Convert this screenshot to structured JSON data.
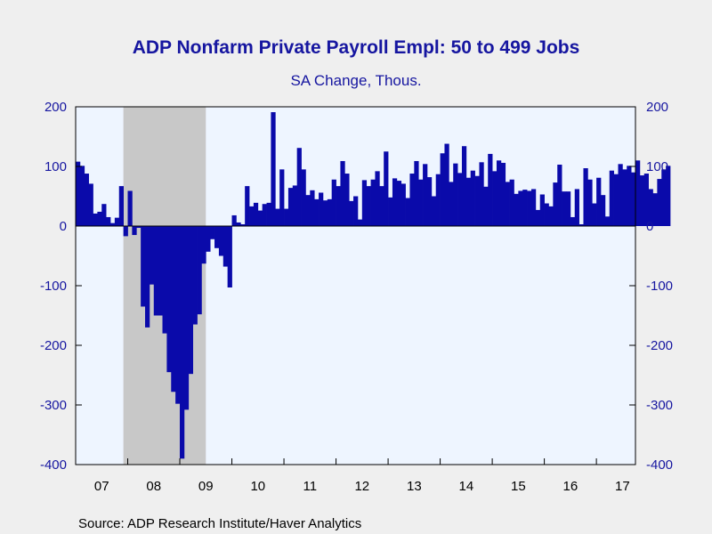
{
  "chart_data": {
    "type": "bar",
    "title": "ADP Nonfarm Private Payroll Empl: 50 to 499 Jobs",
    "subtitle": "SA Change, Thous.",
    "source": "Source:  ADP Research Institute/Haver Analytics",
    "xlabel": "",
    "ylabel": "",
    "ylim": [
      -400,
      200
    ],
    "yticks": [
      200,
      100,
      0,
      -100,
      -200,
      -300,
      -400
    ],
    "y_tick_labels": [
      "200",
      "100",
      "0",
      "-100",
      "-200",
      "-300",
      "-400"
    ],
    "x_tick_labels": [
      "07",
      "08",
      "09",
      "10",
      "11",
      "12",
      "13",
      "14",
      "15",
      "16",
      "17"
    ],
    "x_range": [
      "2007-01",
      "2017-09"
    ],
    "grid": false,
    "frequency": "monthly",
    "recession_shading": {
      "start": "2007-12",
      "end": "2009-06"
    },
    "colors": {
      "bars": "#0a0aaa",
      "plot_background": "#eef5ff",
      "recession": "#c8c8c8",
      "axis": "#1616a0",
      "text": "#1616a0",
      "page_background": "#efefef"
    },
    "series": [
      {
        "start": "2007-01",
        "values": [
          108,
          101,
          88,
          71,
          21,
          24,
          37,
          15,
          5,
          14,
          67,
          -17,
          59,
          -15,
          -3,
          -135,
          -170,
          -98,
          -150,
          -150,
          -180,
          -245,
          -278,
          -298,
          -390,
          -308,
          -248,
          -165,
          -148,
          -63,
          -43,
          -22,
          -37,
          -50,
          -68,
          -103,
          18,
          6,
          3,
          67,
          33,
          39,
          26,
          37,
          39,
          191,
          29,
          95,
          29,
          64,
          68,
          131,
          95,
          52,
          60,
          45,
          56,
          43,
          45,
          78,
          67,
          109,
          88,
          42,
          50,
          11,
          77,
          67,
          78,
          92,
          67,
          125,
          48,
          80,
          76,
          71,
          47,
          88,
          109,
          78,
          104,
          82,
          50,
          87,
          122,
          138,
          74,
          105,
          89,
          134,
          81,
          93,
          84,
          107,
          66,
          121,
          92,
          110,
          106,
          74,
          78,
          54,
          59,
          61,
          59,
          62,
          27,
          53,
          38,
          33,
          73,
          103,
          58,
          58,
          15,
          62,
          3,
          97,
          78,
          38,
          81,
          52,
          16,
          93,
          87,
          104,
          95,
          101,
          90,
          110,
          85,
          88,
          62,
          55,
          79,
          95,
          101
        ]
      }
    ]
  }
}
